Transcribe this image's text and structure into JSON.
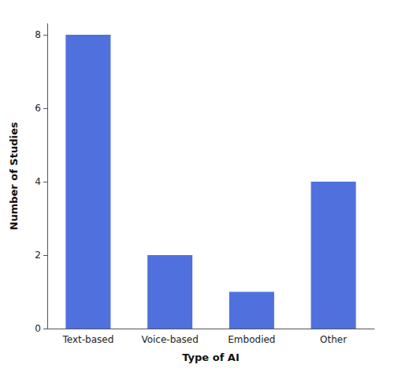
{
  "chart_data": {
    "type": "bar",
    "categories": [
      "Text-based",
      "Voice-based",
      "Embodied",
      "Other"
    ],
    "values": [
      8,
      2,
      1,
      4
    ],
    "xlabel": "Type of AI",
    "ylabel": "Number of Studies",
    "ylim": [
      0,
      8.3
    ],
    "yticks": [
      0,
      2,
      4,
      6,
      8
    ],
    "grid": false
  }
}
